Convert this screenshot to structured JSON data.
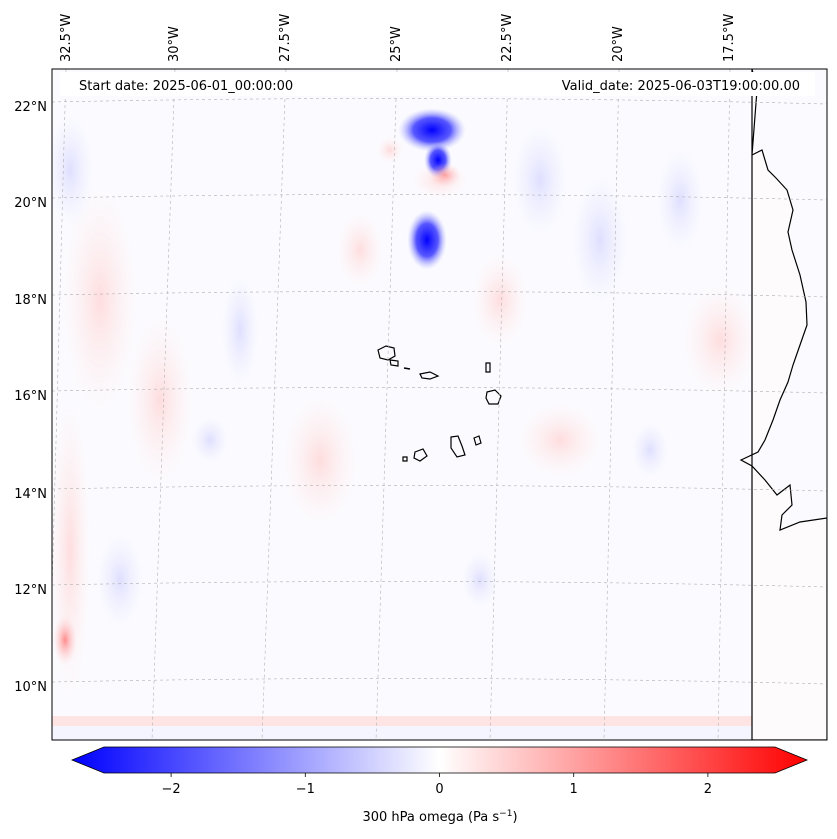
{
  "map": {
    "start_date": "Start date: 2025-06-01_00:00:00",
    "valid_date": "Valid_date: 2025-06-03T19:00:00.00",
    "lon_labels": [
      "32.5°W",
      "30°W",
      "27.5°W",
      "25°W",
      "22.5°W",
      "20°W",
      "17.5°W"
    ],
    "lat_labels": [
      "22°N",
      "20°N",
      "18°N",
      "16°N",
      "14°N",
      "12°N",
      "10°N"
    ],
    "colors": {
      "negative": "#0000ff",
      "positive": "#ff0000",
      "neutral": "#ffffff",
      "coast": "#000000",
      "grid": "#aaaaaa"
    }
  },
  "colorbar": {
    "label": "300 hPa omega (Pa s",
    "label_exp": "−1",
    "label_close": ")",
    "ticks": [
      "−2",
      "−1",
      "0",
      "1",
      "2"
    ],
    "tick_values": [
      -2,
      -1,
      0,
      1,
      2
    ],
    "min": -2.5,
    "max": 2.5
  }
}
